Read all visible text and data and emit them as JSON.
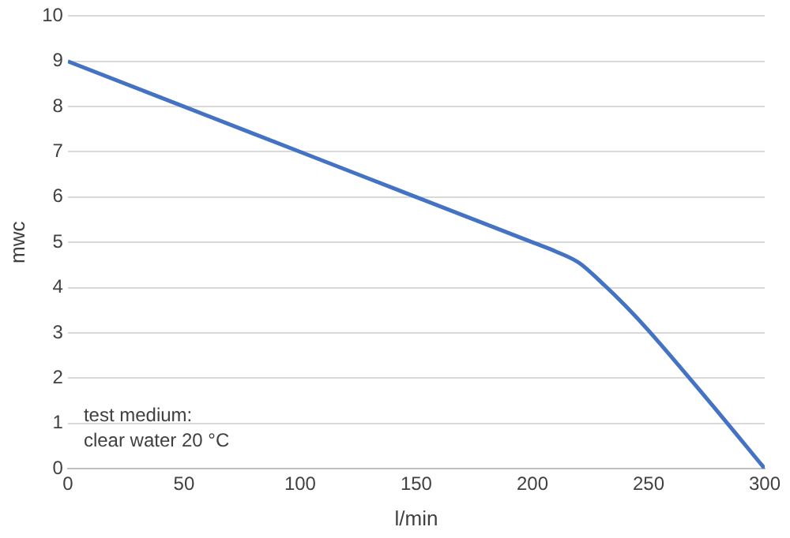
{
  "chart_data": {
    "type": "line",
    "xlabel": "l/min",
    "ylabel": "mwc",
    "x": [
      0,
      50,
      100,
      150,
      200,
      210,
      220,
      230,
      240,
      250,
      275,
      300
    ],
    "series": [
      {
        "color": "#4472c4",
        "values": [
          9,
          8,
          7,
          6,
          5,
          4.8,
          4.55,
          4.1,
          3.6,
          3.05,
          1.55,
          0
        ]
      }
    ],
    "xlim": [
      0,
      300
    ],
    "xticks": [
      0,
      50,
      100,
      150,
      200,
      250,
      300
    ],
    "ylim": [
      0,
      10
    ],
    "yticks": [
      0,
      1,
      2,
      3,
      4,
      5,
      6,
      7,
      8,
      9,
      10
    ],
    "grid": "y",
    "legend": false,
    "marker": "none",
    "line_style": "solid",
    "annotations": [
      "test medium:",
      "clear water 20 °C"
    ]
  }
}
